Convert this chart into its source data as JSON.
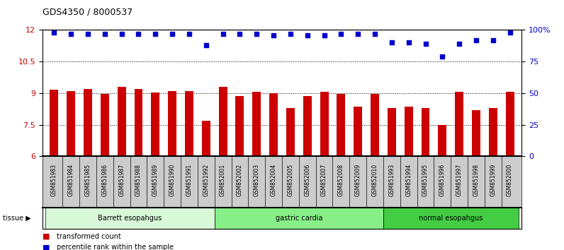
{
  "title": "GDS4350 / 8000537",
  "samples": [
    "GSM851983",
    "GSM851984",
    "GSM851985",
    "GSM851986",
    "GSM851987",
    "GSM851988",
    "GSM851989",
    "GSM851990",
    "GSM851991",
    "GSM851992",
    "GSM852001",
    "GSM852002",
    "GSM852003",
    "GSM852004",
    "GSM852005",
    "GSM852006",
    "GSM852007",
    "GSM852008",
    "GSM852009",
    "GSM852010",
    "GSM851993",
    "GSM851994",
    "GSM851995",
    "GSM851996",
    "GSM851997",
    "GSM851998",
    "GSM851999",
    "GSM852000"
  ],
  "bar_values": [
    9.15,
    9.1,
    9.2,
    8.97,
    9.3,
    9.2,
    9.03,
    9.08,
    9.08,
    7.7,
    9.3,
    8.85,
    9.05,
    9.0,
    8.3,
    8.85,
    9.05,
    8.97,
    8.35,
    8.95,
    8.3,
    8.35,
    8.3,
    7.5,
    9.05,
    8.2,
    8.3,
    9.05
  ],
  "dot_values": [
    98,
    97,
    97,
    97,
    97,
    97,
    97,
    97,
    97,
    88,
    97,
    97,
    97,
    96,
    97,
    96,
    96,
    97,
    97,
    97,
    90,
    90,
    89,
    79,
    89,
    92,
    92,
    98
  ],
  "groups": [
    {
      "label": "Barrett esopahgus",
      "start": 0,
      "end": 10,
      "color": "#d8f8d8"
    },
    {
      "label": "gastric cardia",
      "start": 10,
      "end": 20,
      "color": "#88ee88"
    },
    {
      "label": "normal esopahgus",
      "start": 20,
      "end": 28,
      "color": "#44cc44"
    }
  ],
  "ylim_left": [
    6,
    12
  ],
  "ylim_right": [
    0,
    100
  ],
  "yticks_left": [
    6,
    7.5,
    9,
    10.5,
    12
  ],
  "yticks_right": [
    0,
    25,
    50,
    75,
    100
  ],
  "ytick_right_labels": [
    "0",
    "25",
    "50",
    "75",
    "100%"
  ],
  "bar_color": "#cc0000",
  "dot_color": "#0000cc",
  "plot_bg": "#ffffff",
  "xtick_bg": "#cccccc",
  "legend_items": [
    {
      "label": "transformed count",
      "color": "#cc0000"
    },
    {
      "label": "percentile rank within the sample",
      "color": "#0000cc"
    }
  ],
  "grid_lines": [
    7.5,
    9.0,
    10.5
  ],
  "bar_width": 0.5
}
